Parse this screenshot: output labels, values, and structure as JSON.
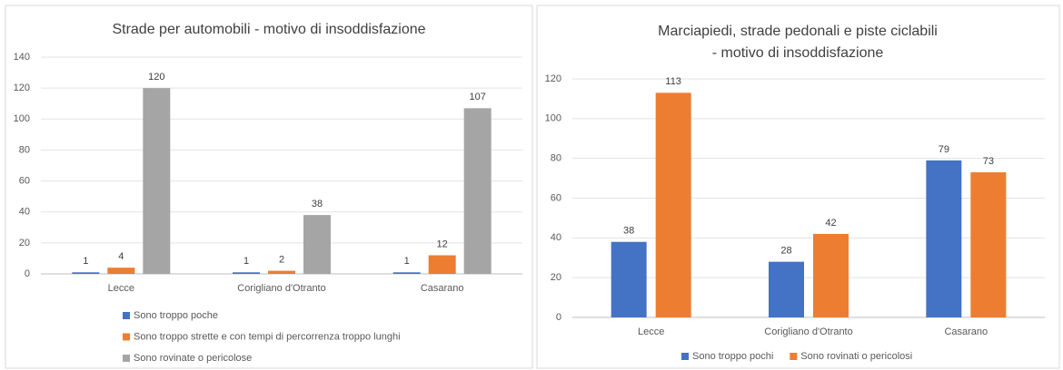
{
  "chart_data": [
    {
      "type": "bar",
      "title": [
        "Strade per automobili - motivo di insoddisfazione"
      ],
      "categories": [
        "Lecce",
        "Corigliano d'Otranto",
        "Casarano"
      ],
      "series": [
        {
          "name": "Sono troppo poche",
          "color": "#4472c4",
          "values": [
            1,
            1,
            1
          ]
        },
        {
          "name": "Sono troppo strette e con tempi di percorrenza troppo lunghi",
          "color": "#ed7d31",
          "values": [
            4,
            2,
            12
          ]
        },
        {
          "name": "Sono rovinate o pericolose",
          "color": "#a5a5a5",
          "values": [
            120,
            38,
            107
          ]
        }
      ],
      "ylim": [
        0,
        140
      ],
      "yticks": [
        0,
        20,
        40,
        60,
        80,
        100,
        120,
        140
      ],
      "grid": true,
      "legend": "bottom-vertical"
    },
    {
      "type": "bar",
      "title": [
        "Marciapiedi, strade pedonali e piste ciclabili",
        "- motivo di insoddisfazione"
      ],
      "categories": [
        "Lecce",
        "Corigliano d'Otranto",
        "Casarano"
      ],
      "series": [
        {
          "name": "Sono troppo pochi",
          "color": "#4472c4",
          "values": [
            38,
            28,
            79
          ]
        },
        {
          "name": "Sono rovinati o pericolosi",
          "color": "#ed7d31",
          "values": [
            113,
            42,
            73
          ]
        }
      ],
      "ylim": [
        0,
        120
      ],
      "yticks": [
        0,
        20,
        40,
        60,
        80,
        100,
        120
      ],
      "grid": true,
      "legend": "bottom-horizontal"
    }
  ]
}
